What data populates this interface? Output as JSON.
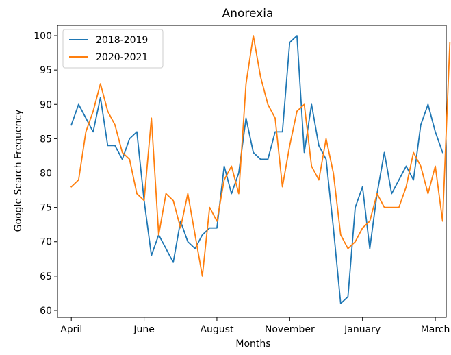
{
  "chart_data": {
    "type": "line",
    "title": "Anorexia",
    "xlabel": "Months",
    "ylabel": "Google Search Frequency",
    "ylim": [
      59,
      101.5
    ],
    "xlim": [
      -1.9,
      51.5
    ],
    "grid": false,
    "legend_position": "top-left",
    "x_ticks": [
      {
        "label": "April",
        "pos": 0
      },
      {
        "label": "June",
        "pos": 10
      },
      {
        "label": "August",
        "pos": 20
      },
      {
        "label": "November",
        "pos": 30
      },
      {
        "label": "January",
        "pos": 40
      },
      {
        "label": "March",
        "pos": 50
      }
    ],
    "y_ticks": [
      60,
      65,
      70,
      75,
      80,
      85,
      90,
      95,
      100
    ],
    "series": [
      {
        "name": "2018-2019",
        "color": "#1f77b4",
        "values": [
          87,
          90,
          88,
          86,
          91,
          84,
          84,
          82,
          85,
          86,
          76,
          68,
          71,
          69,
          67,
          73,
          70,
          69,
          71,
          72,
          72,
          81,
          77,
          80,
          88,
          83,
          82,
          82,
          86,
          86,
          99,
          100,
          83,
          90,
          84,
          82,
          72,
          61,
          62,
          75,
          78,
          69,
          77,
          83,
          77,
          79,
          81,
          79,
          87,
          90,
          86,
          83
        ]
      },
      {
        "name": "2020-2021",
        "color": "#ff7f0e",
        "values": [
          78,
          79,
          86,
          89,
          93,
          89,
          87,
          83,
          82,
          77,
          76,
          88,
          71,
          77,
          76,
          72,
          77,
          71,
          65,
          75,
          73,
          79,
          81,
          77,
          93,
          100,
          94,
          90,
          88,
          78,
          84,
          89,
          90,
          81,
          79,
          85,
          80,
          71,
          69,
          70,
          72,
          73,
          77,
          75,
          75,
          75,
          78,
          83,
          81,
          77,
          81,
          73,
          99
        ]
      }
    ]
  }
}
